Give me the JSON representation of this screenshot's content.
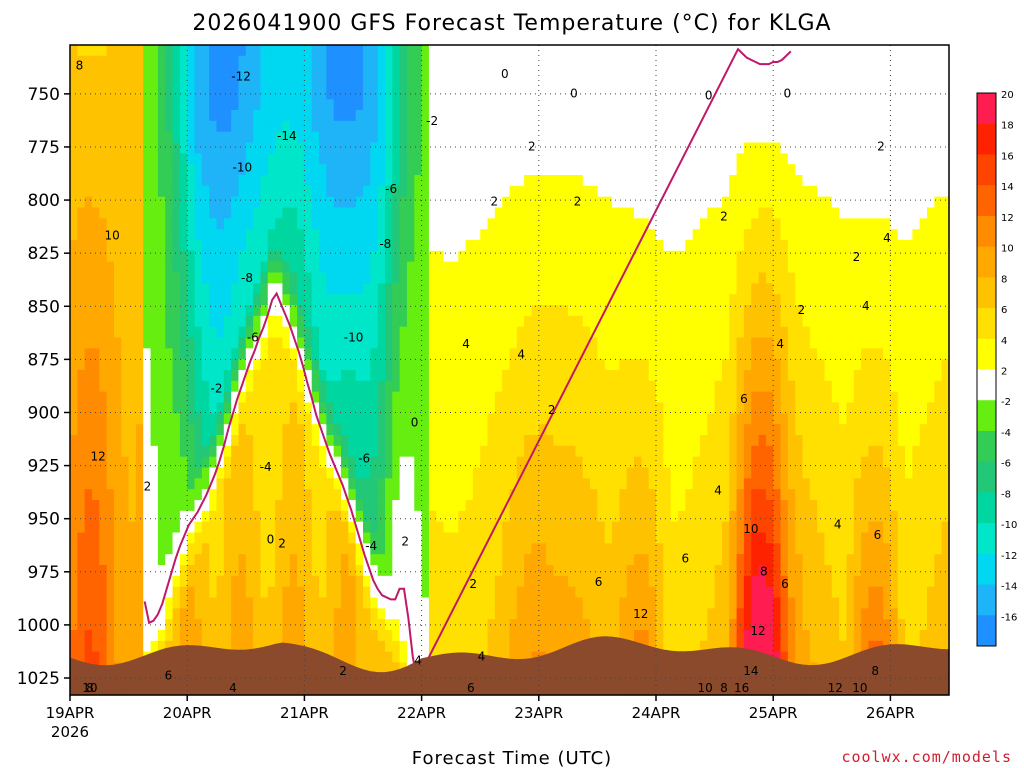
{
  "chart_data": {
    "type": "heatmap",
    "title": "2026041900 GFS Forecast Temperature (°C) for KLGA",
    "xlabel": "Forecast Time (UTC)",
    "ylabel": "",
    "credit": "coolwx.com/models",
    "x_tick_labels": [
      "19APR",
      "20APR",
      "21APR",
      "22APR",
      "23APR",
      "24APR",
      "25APR",
      "26APR"
    ],
    "x_tick_year": "2026",
    "x_range_days": [
      0,
      7.5
    ],
    "y_range_hpa": [
      727,
      1033
    ],
    "y_ticks": [
      750,
      775,
      800,
      825,
      850,
      875,
      900,
      925,
      950,
      975,
      1000,
      1025
    ],
    "colorbar": {
      "levels": [
        -16,
        -14,
        -12,
        -10,
        -8,
        -6,
        -4,
        -2,
        2,
        4,
        6,
        8,
        10,
        12,
        14,
        16,
        18,
        20
      ],
      "colors": [
        "#1e90ff",
        "#1fb4f8",
        "#00d7f0",
        "#00e6c8",
        "#00d7a0",
        "#22c878",
        "#33cc55",
        "#66ee11",
        "#ffffff",
        "#ffff00",
        "#ffe000",
        "#ffc200",
        "#ffa800",
        "#ff8c00",
        "#ff6400",
        "#ff4400",
        "#ff2200",
        "#ff1c50"
      ]
    },
    "terrain_color": "#8b4a2b",
    "zero_line_color": "#c0186a",
    "contour_labels": [
      {
        "text": "8",
        "day": 0.08,
        "p": 737
      },
      {
        "text": "-12",
        "day": 1.46,
        "p": 742
      },
      {
        "text": "-14",
        "day": 1.85,
        "p": 770
      },
      {
        "text": "-10",
        "day": 1.47,
        "p": 785
      },
      {
        "text": "-8",
        "day": 1.51,
        "p": 837
      },
      {
        "text": "10",
        "day": 0.36,
        "p": 817
      },
      {
        "text": "-6",
        "day": 1.56,
        "p": 865
      },
      {
        "text": "-2",
        "day": 1.25,
        "p": 889
      },
      {
        "text": "-4",
        "day": 1.67,
        "p": 926
      },
      {
        "text": "12",
        "day": 0.24,
        "p": 921
      },
      {
        "text": "2",
        "day": 0.66,
        "p": 935
      },
      {
        "text": "0",
        "day": 1.71,
        "p": 960
      },
      {
        "text": "2",
        "day": 1.81,
        "p": 962
      },
      {
        "text": "-6",
        "day": 2.74,
        "p": 795
      },
      {
        "text": "-8",
        "day": 2.69,
        "p": 821
      },
      {
        "text": "-10",
        "day": 2.42,
        "p": 865
      },
      {
        "text": "-6",
        "day": 2.51,
        "p": 922
      },
      {
        "text": "-4",
        "day": 2.57,
        "p": 963
      },
      {
        "text": "2",
        "day": 2.33,
        "p": 1022
      },
      {
        "text": "0",
        "day": 2.94,
        "p": 905
      },
      {
        "text": "2",
        "day": 2.86,
        "p": 961
      },
      {
        "text": "-2",
        "day": 3.09,
        "p": 763
      },
      {
        "text": "4",
        "day": 3.38,
        "p": 868
      },
      {
        "text": "2",
        "day": 3.44,
        "p": 981
      },
      {
        "text": "4",
        "day": 3.51,
        "p": 1015
      },
      {
        "text": "4",
        "day": 2.97,
        "p": 1017
      },
      {
        "text": "6",
        "day": 3.42,
        "p": 1048
      },
      {
        "text": "0",
        "day": 3.71,
        "p": 741
      },
      {
        "text": "2",
        "day": 3.94,
        "p": 775
      },
      {
        "text": "2",
        "day": 3.62,
        "p": 801
      },
      {
        "text": "4",
        "day": 3.85,
        "p": 873
      },
      {
        "text": "2",
        "day": 4.11,
        "p": 899
      },
      {
        "text": "2",
        "day": 4.33,
        "p": 801
      },
      {
        "text": "0",
        "day": 4.3,
        "p": 750
      },
      {
        "text": "6",
        "day": 4.51,
        "p": 980
      },
      {
        "text": "12",
        "day": 4.87,
        "p": 995
      },
      {
        "text": "6",
        "day": 5.25,
        "p": 969
      },
      {
        "text": "0",
        "day": 5.45,
        "p": 751
      },
      {
        "text": "2",
        "day": 5.58,
        "p": 808
      },
      {
        "text": "4",
        "day": 5.53,
        "p": 937
      },
      {
        "text": "6",
        "day": 5.75,
        "p": 894
      },
      {
        "text": "10",
        "day": 5.81,
        "p": 955
      },
      {
        "text": "8",
        "day": 5.92,
        "p": 975
      },
      {
        "text": "12",
        "day": 5.87,
        "p": 1003
      },
      {
        "text": "14",
        "day": 5.81,
        "p": 1022
      },
      {
        "text": "8",
        "day": 5.58,
        "p": 1038
      },
      {
        "text": "16",
        "day": 5.73,
        "p": 1079
      },
      {
        "text": "10",
        "day": 5.42,
        "p": 1091
      },
      {
        "text": "6",
        "day": 6.1,
        "p": 981
      },
      {
        "text": "4",
        "day": 6.06,
        "p": 868
      },
      {
        "text": "2",
        "day": 6.24,
        "p": 852
      },
      {
        "text": "0",
        "day": 6.12,
        "p": 750
      },
      {
        "text": "2",
        "day": 6.92,
        "p": 775
      },
      {
        "text": "2",
        "day": 6.71,
        "p": 827
      },
      {
        "text": "4",
        "day": 6.97,
        "p": 818
      },
      {
        "text": "4",
        "day": 6.79,
        "p": 850
      },
      {
        "text": "4",
        "day": 6.55,
        "p": 953
      },
      {
        "text": "6",
        "day": 6.89,
        "p": 958
      },
      {
        "text": "8",
        "day": 6.87,
        "p": 1022
      },
      {
        "text": "10",
        "day": 6.74,
        "p": 1049
      },
      {
        "text": "12",
        "day": 6.53,
        "p": 1094
      },
      {
        "text": "8",
        "day": 0.17,
        "p": 1070
      },
      {
        "text": "10",
        "day": 0.17,
        "p": 1085
      },
      {
        "text": "6",
        "day": 0.84,
        "p": 1024
      },
      {
        "text": "4",
        "day": 1.39,
        "p": 1054
      }
    ]
  }
}
